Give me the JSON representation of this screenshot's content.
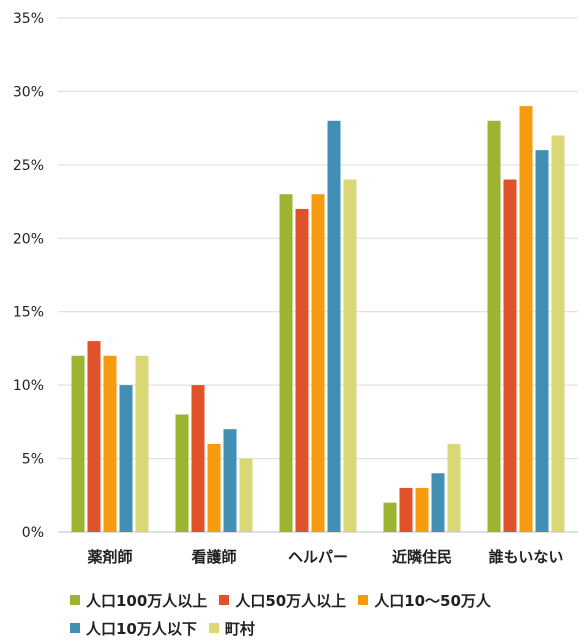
{
  "chart_data": {
    "type": "bar",
    "title": "",
    "xlabel": "",
    "ylabel": "",
    "ylim": [
      0,
      35
    ],
    "yticks": [
      0,
      5,
      10,
      15,
      20,
      25,
      30,
      35
    ],
    "ytick_labels": [
      "0%",
      "5%",
      "10%",
      "15%",
      "20%",
      "25%",
      "30%",
      "35%"
    ],
    "grid": true,
    "legend_position": "bottom",
    "categories": [
      "薬剤師",
      "看護師",
      "ヘルパー",
      "近隣住民",
      "誰もいない"
    ],
    "series": [
      {
        "name": "人口100万人以上",
        "color": "#9bb533",
        "values": [
          12,
          8,
          23,
          2,
          28
        ]
      },
      {
        "name": "人口50万人以上",
        "color": "#e0522a",
        "values": [
          13,
          10,
          22,
          3,
          24
        ]
      },
      {
        "name": "人口10〜50万人",
        "color": "#f79a0e",
        "values": [
          12,
          6,
          23,
          3,
          29
        ]
      },
      {
        "name": "人口10万人以下",
        "color": "#418fb5",
        "values": [
          10,
          7,
          28,
          4,
          26
        ]
      },
      {
        "name": "町村",
        "color": "#d9d874",
        "values": [
          12,
          5,
          24,
          6,
          27
        ]
      }
    ]
  }
}
